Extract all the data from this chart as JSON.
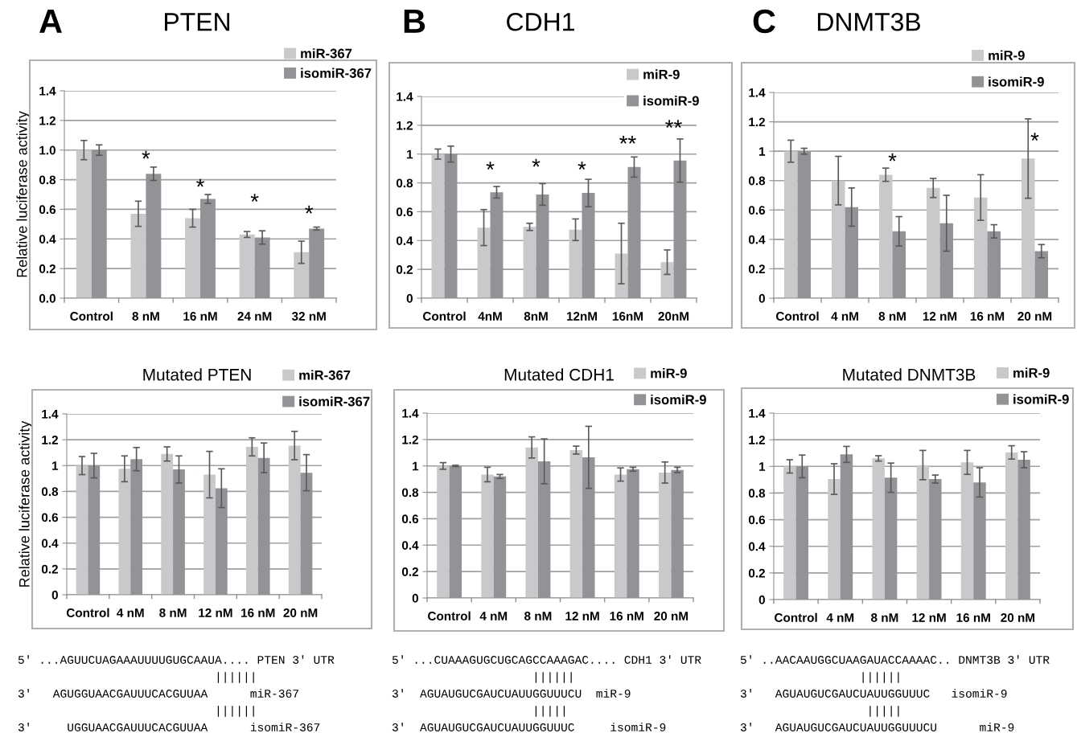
{
  "chart_data": [
    {
      "type": "bar",
      "title": "PTEN",
      "ylabel": "Relative luciferase activity",
      "categories": [
        "Control",
        "8 nM",
        "16 nM",
        "24 nM",
        "32 nM"
      ],
      "series": [
        {
          "name": "miR-367",
          "color": "#c8c9cb",
          "values": [
            1.0,
            0.57,
            0.54,
            0.43,
            0.31
          ],
          "errors": [
            0.065,
            0.085,
            0.06,
            0.02,
            0.075
          ]
        },
        {
          "name": "isomiR-367",
          "color": "#929396",
          "values": [
            1.0,
            0.84,
            0.67,
            0.41,
            0.47
          ],
          "errors": [
            0.035,
            0.045,
            0.03,
            0.045,
            0.01
          ]
        }
      ],
      "ylim": [
        0,
        1.4
      ],
      "yticks": [
        {
          "value": 0,
          "label": "0.0"
        },
        0.2,
        0.4,
        0.6,
        0.8,
        {
          "value": 1,
          "label": "1.0"
        },
        1.2,
        1.4
      ],
      "grid": "y",
      "legend": "top right",
      "annotations": [
        "A",
        "*",
        "*",
        "*",
        "*"
      ]
    },
    {
      "type": "bar",
      "title": "CDH1",
      "categories": [
        "Control",
        "4nM",
        "8nM",
        "12nM",
        "16nM",
        "20nM"
      ],
      "series": [
        {
          "name": "miR-9",
          "color": "#c8c9cb",
          "values": [
            1.0,
            0.49,
            0.495,
            0.475,
            0.31,
            0.25
          ],
          "errors": [
            0.035,
            0.125,
            0.025,
            0.075,
            0.21,
            0.085
          ]
        },
        {
          "name": "isomiR-9",
          "color": "#929396",
          "values": [
            1.0,
            0.735,
            0.72,
            0.73,
            0.91,
            0.955
          ],
          "errors": [
            0.055,
            0.04,
            0.075,
            0.095,
            0.07,
            0.15
          ]
        }
      ],
      "ylim": [
        0,
        1.4
      ],
      "yticks": [
        0,
        0.2,
        0.4,
        0.6,
        0.8,
        1,
        1.2,
        1.4
      ],
      "grid": "y",
      "legend": "top right",
      "annotations": [
        "B",
        "*",
        "*",
        "*",
        "**",
        "**"
      ]
    },
    {
      "type": "bar",
      "title": "DNMT3B",
      "categories": [
        "Control",
        "4 nM",
        "8 nM",
        "12 nM",
        "16 nM",
        "20 nM"
      ],
      "series": [
        {
          "name": "miR-9",
          "color": "#c8c9cb",
          "values": [
            1.0,
            0.8,
            0.84,
            0.75,
            0.685,
            0.95
          ],
          "errors": [
            0.075,
            0.165,
            0.045,
            0.065,
            0.155,
            0.27
          ]
        },
        {
          "name": "isomiR-9",
          "color": "#929396",
          "values": [
            1.0,
            0.62,
            0.455,
            0.51,
            0.455,
            0.32
          ],
          "errors": [
            0.02,
            0.13,
            0.1,
            0.19,
            0.045,
            0.045
          ]
        }
      ],
      "ylim": [
        0,
        1.4
      ],
      "yticks": [
        0,
        0.2,
        0.4,
        0.6,
        0.8,
        1,
        1.2,
        1.4
      ],
      "grid": "y",
      "legend": "top right",
      "annotations": [
        "C",
        "*",
        "*"
      ]
    },
    {
      "type": "bar",
      "title": "Mutated PTEN",
      "ylabel": "Relative luciferase activity",
      "categories": [
        "Control",
        "4 nM",
        "8 nM",
        "12 nM",
        "16 nM",
        "20 nM"
      ],
      "series": [
        {
          "name": "miR-367",
          "color": "#c8c9cb",
          "values": [
            1.0,
            0.975,
            1.09,
            0.93,
            1.145,
            1.155
          ],
          "errors": [
            0.07,
            0.1,
            0.055,
            0.18,
            0.07,
            0.11
          ]
        },
        {
          "name": "isomiR-367",
          "color": "#929396",
          "values": [
            1.0,
            1.05,
            0.97,
            0.825,
            1.06,
            0.945
          ],
          "errors": [
            0.095,
            0.09,
            0.105,
            0.15,
            0.115,
            0.14
          ]
        }
      ],
      "ylim": [
        0,
        1.4
      ],
      "yticks": [
        0,
        0.2,
        0.4,
        0.6,
        0.8,
        1,
        1.2,
        1.4
      ],
      "grid": "y",
      "legend": "top right",
      "annotations": [
        "5′ ...AGUUCUAGAAAUUUUGUGCAAUA.... PTEN 3′ UTR",
        "                            ||||||",
        "3′   AGUGGUAACGAUUUCACGUUAA      miR-367",
        "                            ||||||",
        "3′     UGGUAACGAUUUCACGUUAA      isomiR-367"
      ]
    },
    {
      "type": "bar",
      "title": "Mutated CDH1",
      "categories": [
        "Control",
        "4 nM",
        "8 nM",
        "12 nM",
        "16 nM",
        "20 nM"
      ],
      "series": [
        {
          "name": "miR-9",
          "color": "#c8c9cb",
          "values": [
            1.0,
            0.935,
            1.14,
            1.12,
            0.935,
            0.95
          ],
          "errors": [
            0.025,
            0.055,
            0.08,
            0.03,
            0.05,
            0.08
          ]
        },
        {
          "name": "isomiR-9",
          "color": "#929396",
          "values": [
            1.0,
            0.92,
            1.035,
            1.065,
            0.975,
            0.97
          ],
          "errors": [
            0.005,
            0.015,
            0.17,
            0.235,
            0.015,
            0.02
          ]
        }
      ],
      "ylim": [
        0,
        1.4
      ],
      "yticks": [
        0,
        0.2,
        0.4,
        0.6,
        0.8,
        1,
        1.2,
        1.4
      ],
      "grid": "y",
      "legend": "top right",
      "annotations": [
        "5′ ...CUAAAGUGCUGCAGCCAAAGAC.... CDH1 3′ UTR",
        "                    ||||||",
        "3′  AGUAUGUCGAUCUAUUGGUUUCU  miR-9",
        "                    |||||",
        "3′  AGUAUGUCGAUCUAUUGGUUUC     isomiR-9"
      ]
    },
    {
      "type": "bar",
      "title": "Mutated DNMT3B",
      "categories": [
        "Control",
        "4 nM",
        "8 nM",
        "12 nM",
        "16 nM",
        "20 nM"
      ],
      "series": [
        {
          "name": "miR-9",
          "color": "#c8c9cb",
          "values": [
            1.0,
            0.905,
            1.06,
            1.01,
            1.03,
            1.105
          ],
          "errors": [
            0.05,
            0.115,
            0.02,
            0.11,
            0.09,
            0.05
          ]
        },
        {
          "name": "isomiR-9",
          "color": "#929396",
          "values": [
            1.0,
            1.09,
            0.915,
            0.905,
            0.88,
            1.05
          ],
          "errors": [
            0.085,
            0.06,
            0.11,
            0.03,
            0.11,
            0.06
          ]
        }
      ],
      "ylim": [
        0,
        1.4
      ],
      "yticks": [
        0,
        0.2,
        0.4,
        0.6,
        0.8,
        1,
        1.2,
        1.4
      ],
      "grid": "y",
      "legend": "top right",
      "annotations": [
        "5′ ..AACAAUGGCUAAGAUACCAAAAC.. DNMT3B 3′ UTR",
        "                 ||||||",
        "3′   AGUAUGUCGAUCUAUUGGUUUC   isomiR-9",
        "                  |||||",
        "3′   AGUAUGUCGAUCUAUUGGUUUCU      miR-9"
      ]
    }
  ]
}
